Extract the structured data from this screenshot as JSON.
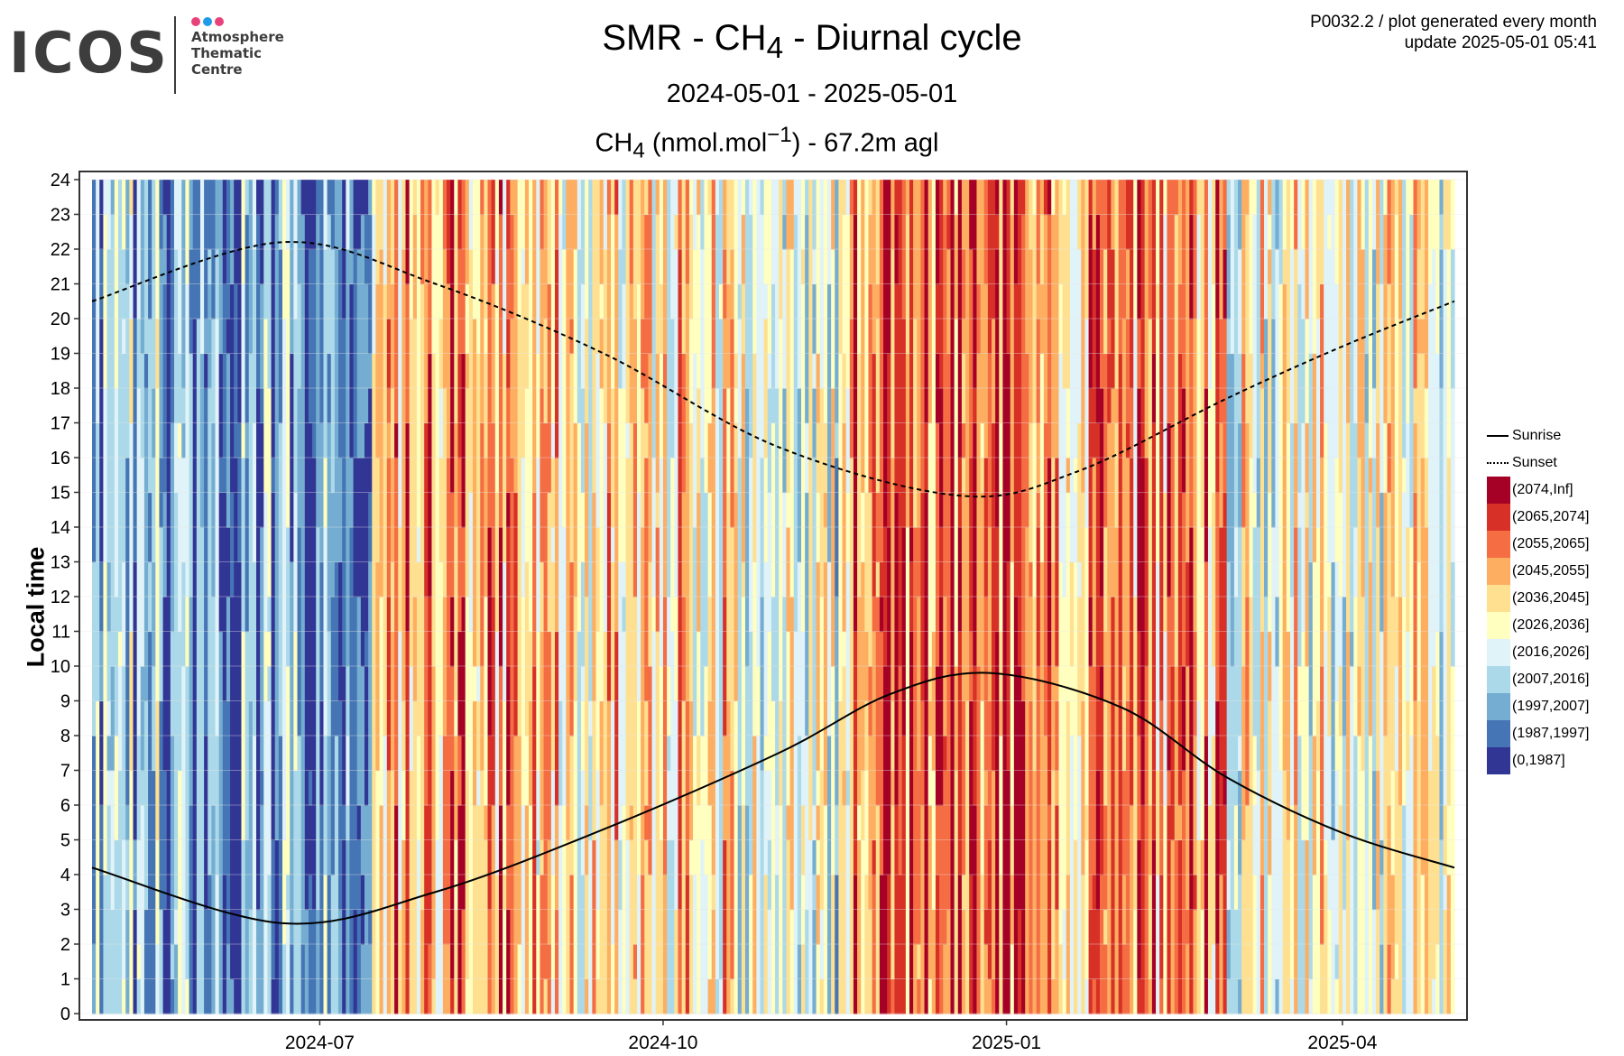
{
  "header": {
    "logo_text": "ICOS",
    "logo_subtitle": "Atmosphere\nThematic\nCentre",
    "logo_dot_colors": [
      "#e8427c",
      "#1e9be9",
      "#e8427c"
    ],
    "product_id": "P0032.2 / plot generated every month",
    "update": "update  2025-05-01 05:41"
  },
  "chart_data": {
    "type": "heatmap",
    "title_parts": [
      "SMR - CH",
      "4",
      " - Diurnal cycle"
    ],
    "subtitle": "2024-05-01 - 2025-05-01",
    "quantity_parts": [
      "CH",
      "4",
      " (nmol.mol",
      "−1",
      ") - 67.2m agl"
    ],
    "ylabel": "Local time",
    "x_range": [
      "2024-05-01",
      "2025-05-01"
    ],
    "y_range": [
      0,
      24
    ],
    "x_ticks": [
      "2024-07",
      "2024-10",
      "2025-01",
      "2025-04"
    ],
    "y_ticks": [
      0,
      1,
      2,
      3,
      4,
      5,
      6,
      7,
      8,
      9,
      10,
      11,
      12,
      13,
      14,
      15,
      16,
      17,
      18,
      19,
      20,
      21,
      22,
      23,
      24
    ],
    "grid": true,
    "legend_position": "right",
    "sun_lines": [
      {
        "name": "Sunrise",
        "style": "solid",
        "points": [
          [
            "2024-05-01",
            4.2
          ],
          [
            "2024-06-21",
            2.6
          ],
          [
            "2024-08-01",
            3.5
          ],
          [
            "2024-09-15",
            5.3
          ],
          [
            "2024-11-01",
            7.5
          ],
          [
            "2024-12-01",
            9.2
          ],
          [
            "2024-12-28",
            9.8
          ],
          [
            "2025-02-01",
            8.8
          ],
          [
            "2025-03-01",
            6.8
          ],
          [
            "2025-04-01",
            5.2
          ],
          [
            "2025-05-01",
            4.2
          ]
        ]
      },
      {
        "name": "Sunset",
        "style": "dashed",
        "points": [
          [
            "2024-05-01",
            20.5
          ],
          [
            "2024-06-21",
            22.2
          ],
          [
            "2024-08-01",
            21.0
          ],
          [
            "2024-09-15",
            19.0
          ],
          [
            "2024-11-01",
            16.3
          ],
          [
            "2024-12-20",
            14.9
          ],
          [
            "2025-01-20",
            15.6
          ],
          [
            "2025-03-01",
            17.7
          ],
          [
            "2025-04-01",
            19.2
          ],
          [
            "2025-05-01",
            20.5
          ]
        ]
      }
    ],
    "color_classes": [
      {
        "label": "(2074,Inf]",
        "color": "#a50026"
      },
      {
        "label": "(2065,2074]",
        "color": "#d73027"
      },
      {
        "label": "(2055,2065]",
        "color": "#f46d43"
      },
      {
        "label": "(2045,2055]",
        "color": "#fdae61"
      },
      {
        "label": "(2036,2045]",
        "color": "#fee090"
      },
      {
        "label": "(2026,2036]",
        "color": "#ffffbf"
      },
      {
        "label": "(2016,2026]",
        "color": "#e0f3f8"
      },
      {
        "label": "(2007,2016]",
        "color": "#abd9e9"
      },
      {
        "label": "(1997,2007]",
        "color": "#74add1"
      },
      {
        "label": "(1987,1997]",
        "color": "#4575b4"
      },
      {
        "label": "(0,1987]",
        "color": "#313695"
      }
    ],
    "daily_class_profile": [
      {
        "from": "2024-05-01",
        "to": "2024-05-20",
        "dominant": "(2007,2016]"
      },
      {
        "from": "2024-05-20",
        "to": "2024-07-15",
        "dominant": "(1997,2007]"
      },
      {
        "from": "2024-07-15",
        "to": "2024-08-25",
        "dominant": "(2045,2055]"
      },
      {
        "from": "2024-08-25",
        "to": "2024-10-20",
        "dominant": "(2036,2045]"
      },
      {
        "from": "2024-10-20",
        "to": "2024-11-20",
        "dominant": "(2016,2026]"
      },
      {
        "from": "2024-11-20",
        "to": "2025-01-15",
        "dominant": "(2055,2065]"
      },
      {
        "from": "2025-01-15",
        "to": "2025-03-01",
        "dominant": "(2045,2055]"
      },
      {
        "from": "2025-03-01",
        "to": "2025-05-01",
        "dominant": "(2026,2036]"
      }
    ]
  }
}
